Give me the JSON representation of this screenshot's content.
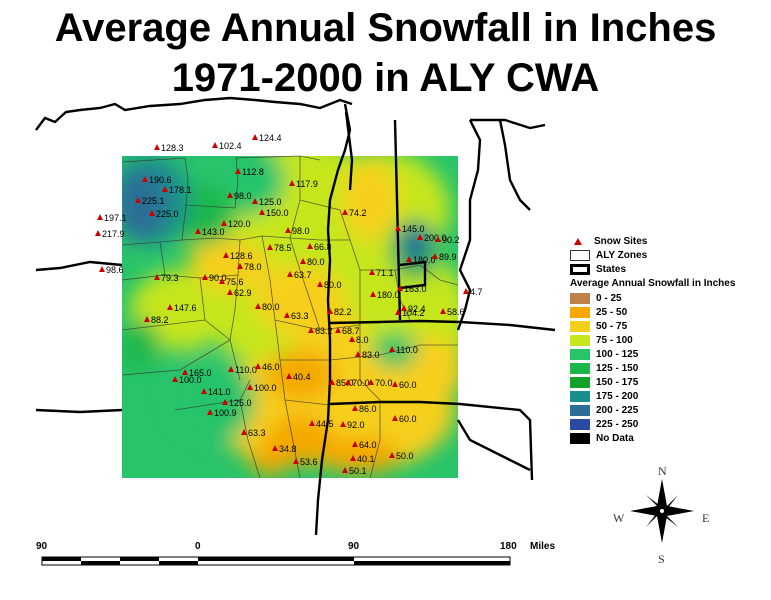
{
  "title": {
    "line1": "Average Annual Snowfall in Inches",
    "line2": "1971-2000 in ALY CWA"
  },
  "legend": {
    "snow_sites": "Snow Sites",
    "aly_zones": "ALY Zones",
    "states": "States",
    "heading": "Average Annual Snowfall in Inches",
    "classes": [
      {
        "label": "0 - 25",
        "color": "#c0804a"
      },
      {
        "label": "25 - 50",
        "color": "#f5a800"
      },
      {
        "label": "50 - 75",
        "color": "#f6cf1a"
      },
      {
        "label": "75 - 100",
        "color": "#c6e61e"
      },
      {
        "label": "100 - 125",
        "color": "#28c46a"
      },
      {
        "label": "125 - 150",
        "color": "#1ab84b"
      },
      {
        "label": "150 - 175",
        "color": "#12a22a"
      },
      {
        "label": "175 - 200",
        "color": "#1a8e8e"
      },
      {
        "label": "200 - 225",
        "color": "#2c6e96"
      },
      {
        "label": "225 - 250",
        "color": "#2a4aa2"
      },
      {
        "label": "No Data",
        "color": "#000000"
      }
    ]
  },
  "scale_bar": {
    "labels": [
      "90",
      "0",
      "90",
      "180"
    ],
    "units": "Miles"
  },
  "compass": {
    "n": "N",
    "s": "S",
    "e": "E",
    "w": "W"
  },
  "snow_sites": [
    "128.3",
    "102.4",
    "124.4",
    "112.8",
    "117.9",
    "190.6",
    "178.1",
    "225.1",
    "225.0",
    "98.0",
    "125.0",
    "150.0",
    "197.1",
    "217.9",
    "143.0",
    "120.0",
    "98.0",
    "74.2",
    "98.6",
    "128.6",
    "78.0",
    "78.5",
    "66.8",
    "80.0",
    "79.3",
    "90.0",
    "75.6",
    "63.7",
    "80.0",
    "62.9",
    "147.6",
    "88.2",
    "80.0",
    "63.3",
    "82.2",
    "63.2",
    "68.7",
    "8.0",
    "83.0",
    "110.0",
    "100.0",
    "165.0",
    "110.0",
    "46.0",
    "40.4",
    "141.0",
    "100.0",
    "85.0",
    "70.0",
    "70.0",
    "60.0",
    "125.0",
    "100.9",
    "86.0",
    "60.0",
    "92.0",
    "63.3",
    "44.5",
    "64.0",
    "34.8",
    "53.6",
    "40.1",
    "50.0",
    "50.1",
    "145.0",
    "200.0",
    "90.2",
    "180.0",
    "89.9",
    "71.1",
    "163.0",
    "180.0",
    "104.2",
    "92.4",
    "4.7",
    "58.6"
  ]
}
